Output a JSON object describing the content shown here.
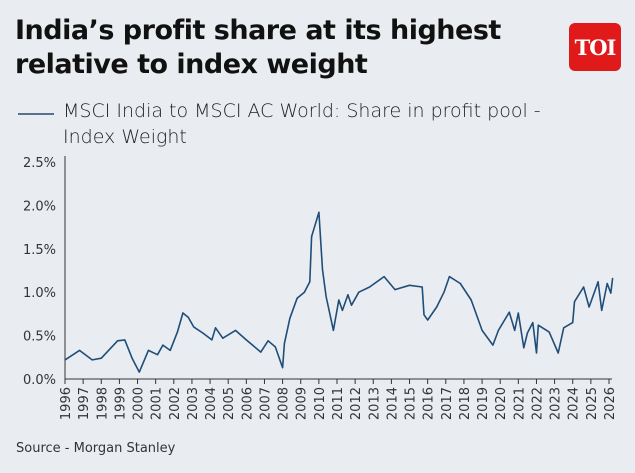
{
  "title": "India’s profit share at its highest relative to index weight",
  "logo_text": "TOI",
  "source": "Source - Morgan Stanley",
  "colors": {
    "background": "#e9edf1",
    "line": "#1f4e79",
    "logo": "#e01a1a"
  },
  "chart_data": {
    "type": "line",
    "title": "India’s profit share at its highest relative to index weight",
    "xlabel": "",
    "ylabel": "",
    "xlim": [
      1996,
      2026
    ],
    "ylim": [
      0,
      2.5
    ],
    "grid": false,
    "legend": "top-left",
    "x_ticks": [
      "1996",
      "1997",
      "1998",
      "1999",
      "2000",
      "2001",
      "2002",
      "2003",
      "2004",
      "2005",
      "2006",
      "2007",
      "2008",
      "2009",
      "2010",
      "2011",
      "2012",
      "2013",
      "2014",
      "2015",
      "2016",
      "2017",
      "2018",
      "2019",
      "2020",
      "2021",
      "2022",
      "2023",
      "2024",
      "2025",
      "2026"
    ],
    "y_ticks": [
      "0.0%",
      "0.5%",
      "1.0%",
      "1.5%",
      "2.0%",
      "2.5%"
    ],
    "series": [
      {
        "name": "MSCI India to MSCI AC World: Share in profit pool - Index Weight",
        "x": [
          1996.0,
          1996.8,
          1997.5,
          1998.0,
          1998.9,
          1999.3,
          1999.7,
          2000.1,
          2000.6,
          2001.1,
          2001.4,
          2001.8,
          2002.2,
          2002.5,
          2002.8,
          2003.1,
          2003.6,
          2004.1,
          2004.3,
          2004.7,
          2005.4,
          2006.0,
          2006.8,
          2007.2,
          2007.6,
          2008.0,
          2008.1,
          2008.4,
          2008.8,
          2009.2,
          2009.5,
          2009.6,
          2010.0,
          2010.2,
          2010.4,
          2010.8,
          2011.1,
          2011.3,
          2011.6,
          2011.8,
          2012.2,
          2012.8,
          2013.6,
          2014.2,
          2015.0,
          2015.7,
          2015.8,
          2016.0,
          2016.5,
          2016.9,
          2017.2,
          2017.8,
          2018.4,
          2019.0,
          2019.6,
          2019.9,
          2020.5,
          2020.8,
          2021.0,
          2021.3,
          2021.5,
          2021.8,
          2022.0,
          2022.1,
          2022.7,
          2023.2,
          2023.5,
          2024.0,
          2024.1,
          2024.6,
          2024.9,
          2025.4,
          2025.6,
          2025.9,
          2026.1,
          2026.2
        ],
        "values": [
          0.22,
          0.33,
          0.22,
          0.24,
          0.44,
          0.45,
          0.24,
          0.08,
          0.33,
          0.28,
          0.39,
          0.33,
          0.54,
          0.76,
          0.71,
          0.6,
          0.53,
          0.45,
          0.59,
          0.47,
          0.56,
          0.45,
          0.31,
          0.44,
          0.37,
          0.13,
          0.41,
          0.7,
          0.93,
          1.0,
          1.12,
          1.64,
          1.92,
          1.26,
          0.95,
          0.56,
          0.91,
          0.79,
          0.97,
          0.85,
          1.0,
          1.06,
          1.18,
          1.03,
          1.08,
          1.06,
          0.74,
          0.68,
          0.83,
          1.0,
          1.18,
          1.1,
          0.91,
          0.56,
          0.39,
          0.56,
          0.77,
          0.56,
          0.76,
          0.36,
          0.53,
          0.65,
          0.3,
          0.62,
          0.54,
          0.3,
          0.59,
          0.65,
          0.89,
          1.06,
          0.83,
          1.12,
          0.79,
          1.1,
          0.99,
          1.16
        ]
      }
    ]
  }
}
